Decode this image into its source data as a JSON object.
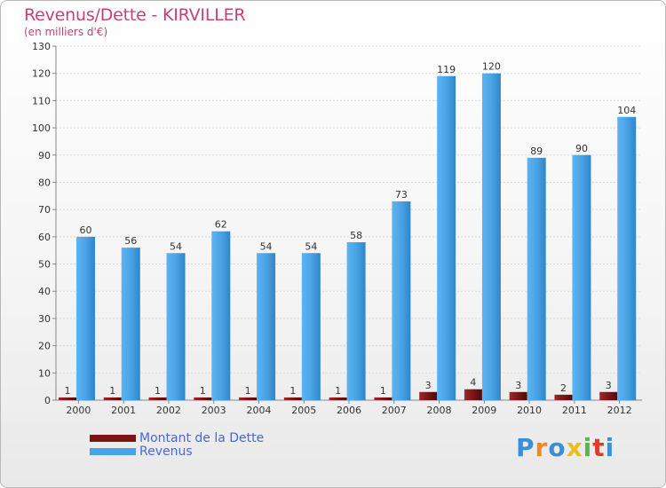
{
  "header": {
    "title": "Revenus/Dette - KIRVILLER",
    "subtitle": "(en milliers d'€)"
  },
  "colors": {
    "revenus": "#4aa3e6",
    "dette": "#7a1515",
    "grid": "#d9d9d9"
  },
  "legend": {
    "dette_label": "Montant de la Dette",
    "revenus_label": "Revenus"
  },
  "logo": {
    "text": "Proxiti"
  },
  "chart_data": {
    "type": "bar",
    "title": "Revenus/Dette - KIRVILLER",
    "ylabel": "(en milliers d'€)",
    "xlabel": "",
    "categories": [
      "2000",
      "2001",
      "2002",
      "2003",
      "2004",
      "2005",
      "2006",
      "2007",
      "2008",
      "2009",
      "2010",
      "2011",
      "2012"
    ],
    "series": [
      {
        "name": "Montant de la Dette",
        "values": [
          1,
          1,
          1,
          1,
          1,
          1,
          1,
          1,
          3,
          4,
          3,
          2,
          3
        ]
      },
      {
        "name": "Revenus",
        "values": [
          60,
          56,
          54,
          62,
          54,
          54,
          58,
          73,
          119,
          120,
          89,
          90,
          104
        ]
      }
    ],
    "ylim": [
      0,
      130
    ],
    "yticks": [
      0,
      10,
      20,
      30,
      40,
      50,
      60,
      70,
      80,
      90,
      100,
      110,
      120,
      130
    ],
    "grid": true,
    "legend_position": "bottom-left"
  }
}
